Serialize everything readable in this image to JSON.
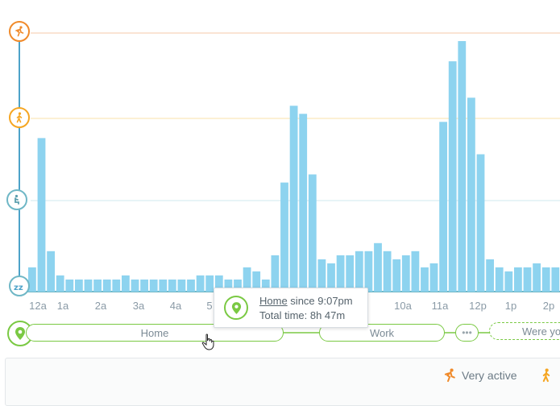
{
  "chart_data": {
    "type": "bar",
    "x_ticks": [
      "12a",
      "1a",
      "2a",
      "3a",
      "4a",
      "5",
      "10a",
      "11a",
      "12p",
      "1p",
      "2p"
    ],
    "activity_levels": [
      {
        "name": "very-active",
        "color": "#f08a2a",
        "icon": "running-icon"
      },
      {
        "name": "active",
        "color": "#f5a623",
        "icon": "walking-icon"
      },
      {
        "name": "light",
        "color": "#6fb7c6",
        "icon": "standing-icon"
      },
      {
        "name": "sleep",
        "color": "#6fb7c6",
        "icon": "sleep-icon"
      }
    ],
    "values": [
      0.3,
      1.9,
      0.5,
      0.2,
      0.15,
      0.15,
      0.15,
      0.15,
      0.15,
      0.15,
      0.2,
      0.15,
      0.15,
      0.15,
      0.15,
      0.15,
      0.15,
      0.15,
      0.2,
      0.2,
      0.2,
      0.15,
      0.15,
      0.3,
      0.25,
      0.15,
      0.45,
      1.35,
      2.3,
      2.2,
      1.45,
      0.4,
      0.35,
      0.45,
      0.45,
      0.5,
      0.5,
      0.6,
      0.5,
      0.4,
      0.45,
      0.5,
      0.3,
      0.35,
      2.1,
      2.85,
      3.1,
      2.4,
      1.7,
      0.4,
      0.3,
      0.25,
      0.3,
      0.3,
      0.35,
      0.3,
      0.3
    ],
    "ylim": [
      0,
      3.2
    ],
    "bar_color": "#8dd3ef"
  },
  "locations": [
    {
      "label": "Home"
    },
    {
      "label": "Work"
    },
    {
      "label": "•••"
    },
    {
      "label": "Were yo"
    }
  ],
  "tooltip": {
    "place": "Home",
    "since": " since 9:07pm",
    "total": "Total time: 8h 47m"
  },
  "legend": {
    "very_active": "Very active"
  },
  "colors": {
    "accent_green": "#7ac943",
    "orange": "#f08a2a",
    "yellow": "#f5a623",
    "teal": "#6fb7c6",
    "axis_blue": "#4da3c9"
  }
}
